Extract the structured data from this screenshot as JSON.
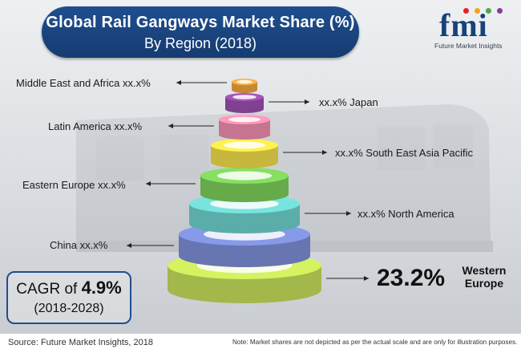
{
  "title": {
    "line1": "Global Rail Gangways Market Share (%)",
    "line2": "By Region (2018)"
  },
  "logo": {
    "letters": "fmi",
    "text": "Future Market Insights",
    "dot_colors": [
      "#e2232a",
      "#f3a21b",
      "#4ea746",
      "#8a3c97"
    ]
  },
  "chart_data": {
    "type": "pie",
    "title": "Global Rail Gangways Market Share (%) By Region (2018)",
    "segments": [
      {
        "name": "Middle East and Africa",
        "value": "xx.x%",
        "color": "#f2a640"
      },
      {
        "name": "Japan",
        "value": "xx.x%",
        "color": "#9b4fb0"
      },
      {
        "name": "Latin America",
        "value": "xx.x%",
        "color": "#f08fae"
      },
      {
        "name": "South East Asia Pacific",
        "value": "xx.x%",
        "color": "#f3e04a"
      },
      {
        "name": "Eastern Europe",
        "value": "xx.x%",
        "color": "#7ccf5a"
      },
      {
        "name": "North America",
        "value": "xx.x%",
        "color": "#6fd3cf"
      },
      {
        "name": "China",
        "value": "xx.x%",
        "color": "#7d8fd8"
      },
      {
        "name": "Western Europe",
        "value": "23.2%",
        "color": "#c5e05a"
      }
    ]
  },
  "highlight": {
    "value": "23.2%",
    "name": "Western Europe"
  },
  "cagr": {
    "label": "CAGR of",
    "value": "4.9%",
    "period": "(2018-2028)"
  },
  "footer": {
    "source": "Source: Future Market Insights, 2018",
    "note": "Note: Market shares are not depicted as per the actual scale and are only for illustration purposes."
  }
}
